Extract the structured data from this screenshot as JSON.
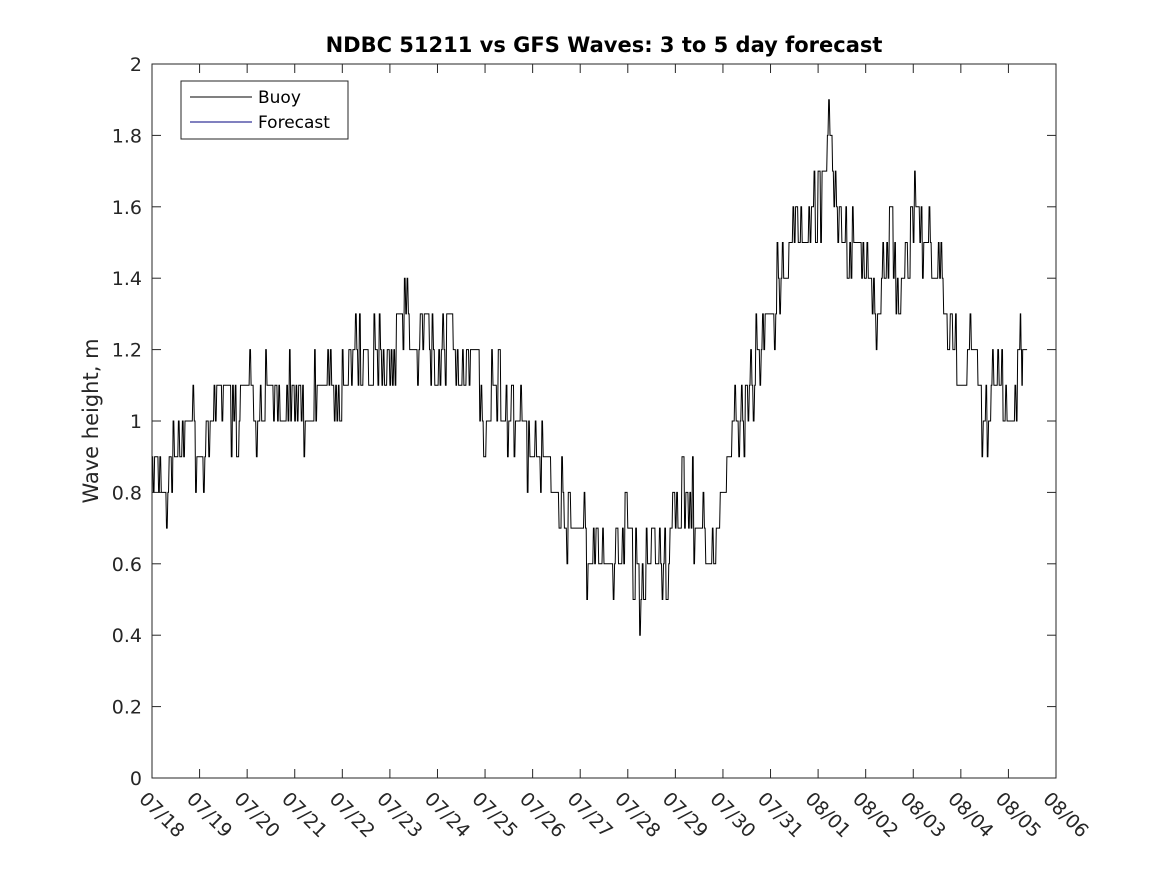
{
  "chart_data": {
    "type": "line",
    "title": "NDBC 51211 vs GFS Waves: 3 to 5 day forecast",
    "xlabel": "",
    "ylabel": "Wave height, m",
    "x_axis": {
      "type": "date",
      "range": [
        "07/18",
        "08/06"
      ],
      "tick_labels": [
        "07/18",
        "07/19",
        "07/20",
        "07/21",
        "07/22",
        "07/23",
        "07/24",
        "07/25",
        "07/26",
        "07/27",
        "07/28",
        "07/29",
        "07/30",
        "07/31",
        "08/01",
        "08/02",
        "08/03",
        "08/04",
        "08/05",
        "08/06"
      ]
    },
    "y_axis": {
      "range": [
        0,
        2
      ],
      "tick_values": [
        0,
        0.2,
        0.4,
        0.6,
        0.8,
        1,
        1.2,
        1.4,
        1.6,
        1.8,
        2
      ],
      "tick_labels": [
        "0",
        "0.2",
        "0.4",
        "0.6",
        "0.8",
        "1",
        "1.2",
        "1.4",
        "1.6",
        "1.8",
        "2"
      ]
    },
    "grid": false,
    "legend": {
      "position": "top-left",
      "entries": [
        "Buoy",
        "Forecast"
      ]
    },
    "series": [
      {
        "name": "Buoy",
        "color": "#000000",
        "x": [
          "07/18 00:00",
          "07/18 06:00",
          "07/18 12:00",
          "07/18 18:00",
          "07/19 00:00",
          "07/19 06:00",
          "07/19 12:00",
          "07/19 18:00",
          "07/20 00:00",
          "07/20 06:00",
          "07/20 12:00",
          "07/20 18:00",
          "07/21 00:00",
          "07/21 06:00",
          "07/21 12:00",
          "07/21 18:00",
          "07/22 00:00",
          "07/22 06:00",
          "07/22 12:00",
          "07/22 18:00",
          "07/23 00:00",
          "07/23 06:00",
          "07/23 12:00",
          "07/23 18:00",
          "07/24 00:00",
          "07/24 06:00",
          "07/24 12:00",
          "07/24 18:00",
          "07/25 00:00",
          "07/25 06:00",
          "07/25 12:00",
          "07/25 18:00",
          "07/26 00:00",
          "07/26 06:00",
          "07/26 12:00",
          "07/26 18:00",
          "07/27 00:00",
          "07/27 06:00",
          "07/27 12:00",
          "07/27 18:00",
          "07/28 00:00",
          "07/28 06:00",
          "07/28 12:00",
          "07/28 18:00",
          "07/29 00:00",
          "07/29 06:00",
          "07/29 12:00",
          "07/29 18:00",
          "07/30 00:00",
          "07/30 06:00",
          "07/30 12:00",
          "07/30 18:00",
          "07/31 00:00",
          "07/31 06:00",
          "07/31 12:00",
          "07/31 18:00",
          "08/01 00:00",
          "08/01 06:00",
          "08/01 12:00",
          "08/01 18:00",
          "08/02 00:00",
          "08/02 06:00",
          "08/02 12:00",
          "08/02 18:00",
          "08/03 00:00",
          "08/03 06:00",
          "08/03 12:00",
          "08/03 18:00",
          "08/04 00:00",
          "08/04 06:00",
          "08/04 12:00",
          "08/04 18:00",
          "08/05 00:00",
          "08/05 06:00"
        ],
        "values": [
          0.9,
          0.8,
          0.9,
          1.0,
          0.9,
          1.0,
          1.1,
          1.0,
          1.1,
          1.0,
          1.1,
          1.0,
          1.1,
          1.0,
          1.1,
          1.1,
          1.1,
          1.2,
          1.1,
          1.2,
          1.2,
          1.3,
          1.2,
          1.3,
          1.1,
          1.3,
          1.1,
          1.2,
          1.0,
          1.1,
          1.0,
          1.0,
          0.9,
          0.9,
          0.8,
          0.7,
          0.7,
          0.6,
          0.6,
          0.6,
          0.7,
          0.5,
          0.6,
          0.6,
          0.7,
          0.8,
          0.7,
          0.6,
          0.8,
          1.0,
          1.0,
          1.2,
          1.3,
          1.4,
          1.5,
          1.5,
          1.6,
          1.8,
          1.5,
          1.5,
          1.4,
          1.3,
          1.5,
          1.4,
          1.6,
          1.5,
          1.4,
          1.3,
          1.1,
          1.2,
          1.0,
          1.1,
          1.0,
          1.2
        ]
      },
      {
        "name": "Forecast",
        "color": "#00007f",
        "x": [],
        "values": []
      }
    ]
  }
}
